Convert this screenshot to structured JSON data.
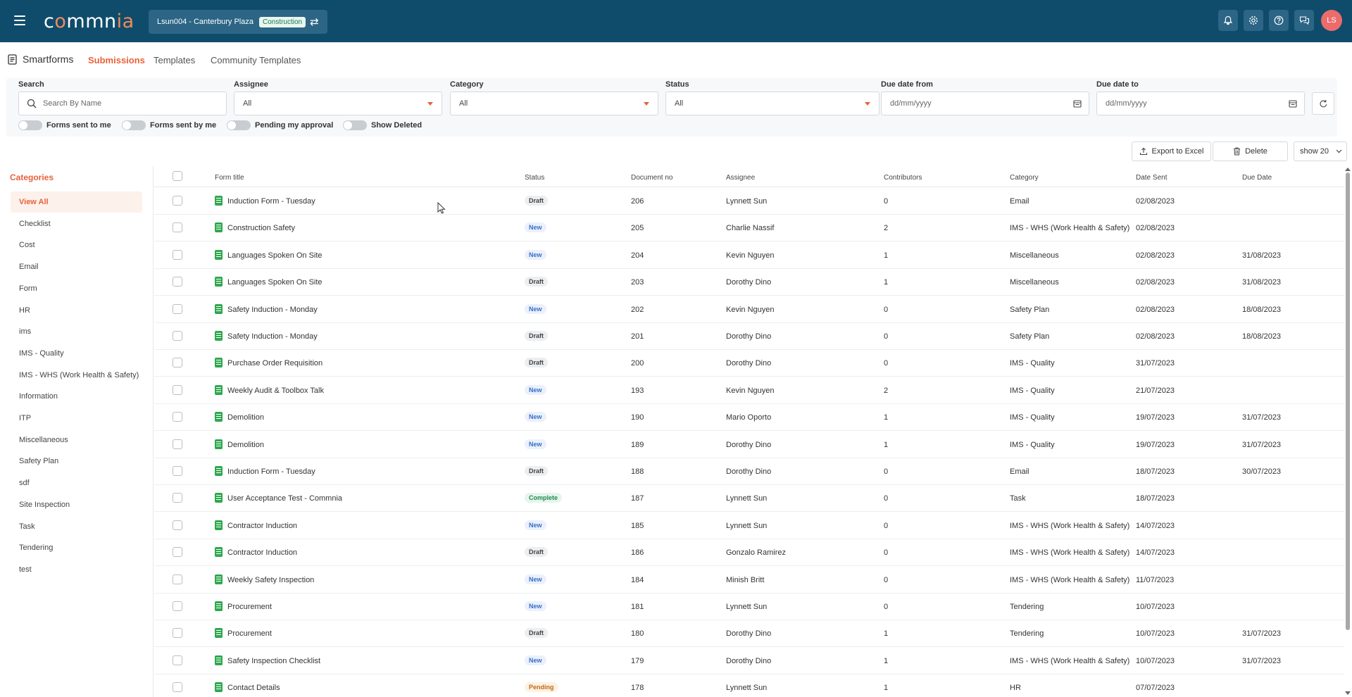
{
  "header": {
    "logo_left": "c",
    "logo_o1": "o",
    "logo_mid": "mmn",
    "logo_end": "ia",
    "project": "Lsun004 - Canterbury Plaza",
    "project_badge": "Construction",
    "avatar_initials": "LS",
    "background": "#0f4c6b"
  },
  "subnav": {
    "module": "Smartforms",
    "tabs": [
      "Submissions",
      "Templates",
      "Community Templates"
    ],
    "active_tab": "Submissions"
  },
  "filters": {
    "search_label": "Search",
    "search_placeholder": "Search By Name",
    "assignee_label": "Assignee",
    "assignee_value": "All",
    "category_label": "Category",
    "category_value": "All",
    "status_label": "Status",
    "status_value": "All",
    "due_from_label": "Due date from",
    "due_from_placeholder": "dd/mm/yyyy",
    "due_to_label": "Due date to",
    "due_to_placeholder": "dd/mm/yyyy",
    "toggles": [
      "Forms sent to me",
      "Forms sent by me",
      "Pending my approval",
      "Show Deleted"
    ]
  },
  "actions": {
    "export": "Export to Excel",
    "delete": "Delete",
    "page_size": "show 20"
  },
  "sidebar": {
    "title": "Categories",
    "items": [
      "View All",
      "Checklist",
      "Cost",
      "Email",
      "Form",
      "HR",
      "ims",
      "IMS - Quality",
      "IMS - WHS (Work Health & Safety)",
      "Information",
      "ITP",
      "Miscellaneous",
      "Safety Plan",
      "sdf",
      "Site Inspection",
      "Task",
      "Tendering",
      "test"
    ],
    "active": "View All"
  },
  "table": {
    "columns": [
      "Form title",
      "Status",
      "Document no",
      "Assignee",
      "Contributors",
      "Category",
      "Date Sent",
      "Due Date"
    ],
    "rows": [
      {
        "title": "Induction Form - Tuesday",
        "status": "Draft",
        "doc": "206",
        "assignee": "Lynnett Sun",
        "contributors": "0",
        "category": "Email",
        "sent": "02/08/2023",
        "due": ""
      },
      {
        "title": "Construction Safety",
        "status": "New",
        "doc": "205",
        "assignee": "Charlie Nassif",
        "contributors": "2",
        "category": "IMS - WHS (Work Health & Safety)",
        "sent": "02/08/2023",
        "due": ""
      },
      {
        "title": "Languages Spoken On Site",
        "status": "New",
        "doc": "204",
        "assignee": "Kevin Nguyen",
        "contributors": "1",
        "category": "Miscellaneous",
        "sent": "02/08/2023",
        "due": "31/08/2023"
      },
      {
        "title": "Languages Spoken On Site",
        "status": "Draft",
        "doc": "203",
        "assignee": "Dorothy Dino",
        "contributors": "1",
        "category": "Miscellaneous",
        "sent": "02/08/2023",
        "due": "31/08/2023"
      },
      {
        "title": "Safety Induction - Monday",
        "status": "New",
        "doc": "202",
        "assignee": "Kevin Nguyen",
        "contributors": "0",
        "category": "Safety Plan",
        "sent": "02/08/2023",
        "due": "18/08/2023"
      },
      {
        "title": "Safety Induction - Monday",
        "status": "Draft",
        "doc": "201",
        "assignee": "Dorothy Dino",
        "contributors": "0",
        "category": "Safety Plan",
        "sent": "02/08/2023",
        "due": "18/08/2023"
      },
      {
        "title": "Purchase Order Requisition",
        "status": "Draft",
        "doc": "200",
        "assignee": "Dorothy Dino",
        "contributors": "0",
        "category": "IMS - Quality",
        "sent": "31/07/2023",
        "due": ""
      },
      {
        "title": "Weekly Audit & Toolbox Talk",
        "status": "New",
        "doc": "193",
        "assignee": "Kevin Nguyen",
        "contributors": "2",
        "category": "IMS - Quality",
        "sent": "21/07/2023",
        "due": ""
      },
      {
        "title": "Demolition",
        "status": "New",
        "doc": "190",
        "assignee": "Mario Oporto",
        "contributors": "1",
        "category": "IMS - Quality",
        "sent": "19/07/2023",
        "due": "31/07/2023"
      },
      {
        "title": "Demolition",
        "status": "New",
        "doc": "189",
        "assignee": "Dorothy Dino",
        "contributors": "1",
        "category": "IMS - Quality",
        "sent": "19/07/2023",
        "due": "31/07/2023"
      },
      {
        "title": "Induction Form - Tuesday",
        "status": "Draft",
        "doc": "188",
        "assignee": "Dorothy Dino",
        "contributors": "0",
        "category": "Email",
        "sent": "18/07/2023",
        "due": "30/07/2023"
      },
      {
        "title": "User Acceptance Test - Commnia",
        "status": "Complete",
        "doc": "187",
        "assignee": "Lynnett Sun",
        "contributors": "0",
        "category": "Task",
        "sent": "18/07/2023",
        "due": ""
      },
      {
        "title": "Contractor Induction",
        "status": "New",
        "doc": "185",
        "assignee": "Lynnett Sun",
        "contributors": "0",
        "category": "IMS - WHS (Work Health & Safety)",
        "sent": "14/07/2023",
        "due": ""
      },
      {
        "title": "Contractor Induction",
        "status": "Draft",
        "doc": "186",
        "assignee": "Gonzalo Ramirez",
        "contributors": "0",
        "category": "IMS - WHS (Work Health & Safety)",
        "sent": "14/07/2023",
        "due": ""
      },
      {
        "title": "Weekly Safety Inspection",
        "status": "New",
        "doc": "184",
        "assignee": "Minish Britt",
        "contributors": "0",
        "category": "IMS - WHS (Work Health & Safety)",
        "sent": "11/07/2023",
        "due": ""
      },
      {
        "title": "Procurement",
        "status": "New",
        "doc": "181",
        "assignee": "Lynnett Sun",
        "contributors": "0",
        "category": "Tendering",
        "sent": "10/07/2023",
        "due": ""
      },
      {
        "title": "Procurement",
        "status": "Draft",
        "doc": "180",
        "assignee": "Dorothy Dino",
        "contributors": "1",
        "category": "Tendering",
        "sent": "10/07/2023",
        "due": "31/07/2023"
      },
      {
        "title": "Safety Inspection Checklist",
        "status": "New",
        "doc": "179",
        "assignee": "Dorothy Dino",
        "contributors": "1",
        "category": "IMS - WHS (Work Health & Safety)",
        "sent": "10/07/2023",
        "due": "31/07/2023"
      },
      {
        "title": "Contact Details",
        "status": "Pending",
        "doc": "178",
        "assignee": "Lynnett Sun",
        "contributors": "1",
        "category": "HR",
        "sent": "07/07/2023",
        "due": ""
      }
    ]
  },
  "colors": {
    "accent": "#e8613a",
    "header_bg": "#0f4c6b"
  }
}
